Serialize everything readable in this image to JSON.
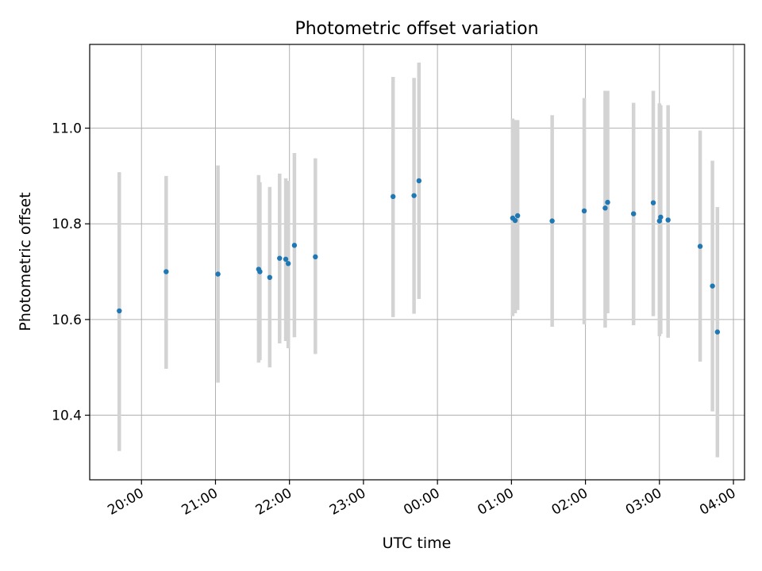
{
  "chart_data": {
    "type": "scatter",
    "title": "Photometric offset variation",
    "xlabel": "UTC time",
    "ylabel": "Photometric offset",
    "x_axis_kind": "time",
    "xlim": [
      "19:18",
      "04:09"
    ],
    "ylim": [
      10.265,
      11.175
    ],
    "x_ticks": [
      "20:00",
      "21:00",
      "22:00",
      "23:00",
      "00:00",
      "01:00",
      "02:00",
      "03:00",
      "04:00"
    ],
    "y_ticks": [
      "10.4",
      "10.6",
      "10.8",
      "11.0"
    ],
    "grid": true,
    "legend": "none",
    "colors": {
      "point": "#1f77b4",
      "error_bar": "#d3d3d3",
      "grid": "#b0b0b0"
    },
    "series": [
      {
        "x": [
          "19:42",
          "20:20",
          "21:02",
          "21:35",
          "21:36",
          "21:44",
          "21:52",
          "21:57",
          "21:59",
          "22:04",
          "22:21",
          "23:24",
          "23:41",
          "23:45",
          "01:01",
          "01:03",
          "01:05",
          "01:33",
          "01:59",
          "02:16",
          "02:18",
          "02:39",
          "02:55",
          "03:00",
          "03:01",
          "03:07",
          "03:33",
          "03:43",
          "03:47"
        ],
        "y": [
          10.618,
          10.7,
          10.695,
          10.705,
          10.7,
          10.688,
          10.728,
          10.726,
          10.717,
          10.755,
          10.731,
          10.857,
          10.859,
          10.89,
          10.812,
          10.807,
          10.817,
          10.806,
          10.827,
          10.833,
          10.845,
          10.821,
          10.844,
          10.806,
          10.814,
          10.808,
          10.753,
          10.67,
          10.574
        ],
        "y_low": [
          10.325,
          10.497,
          10.468,
          10.51,
          10.515,
          10.5,
          10.55,
          10.555,
          10.54,
          10.563,
          10.528,
          10.605,
          10.612,
          10.643,
          10.607,
          10.613,
          10.62,
          10.585,
          10.59,
          10.583,
          10.613,
          10.588,
          10.607,
          10.565,
          10.57,
          10.562,
          10.512,
          10.408,
          10.312
        ],
        "y_high": [
          10.908,
          10.9,
          10.922,
          10.902,
          10.887,
          10.877,
          10.905,
          10.895,
          10.89,
          10.948,
          10.937,
          11.107,
          11.105,
          11.137,
          11.02,
          11.017,
          11.017,
          11.027,
          11.063,
          11.078,
          11.078,
          11.053,
          11.078,
          11.052,
          11.048,
          11.048,
          10.995,
          10.932,
          10.835
        ]
      }
    ]
  }
}
